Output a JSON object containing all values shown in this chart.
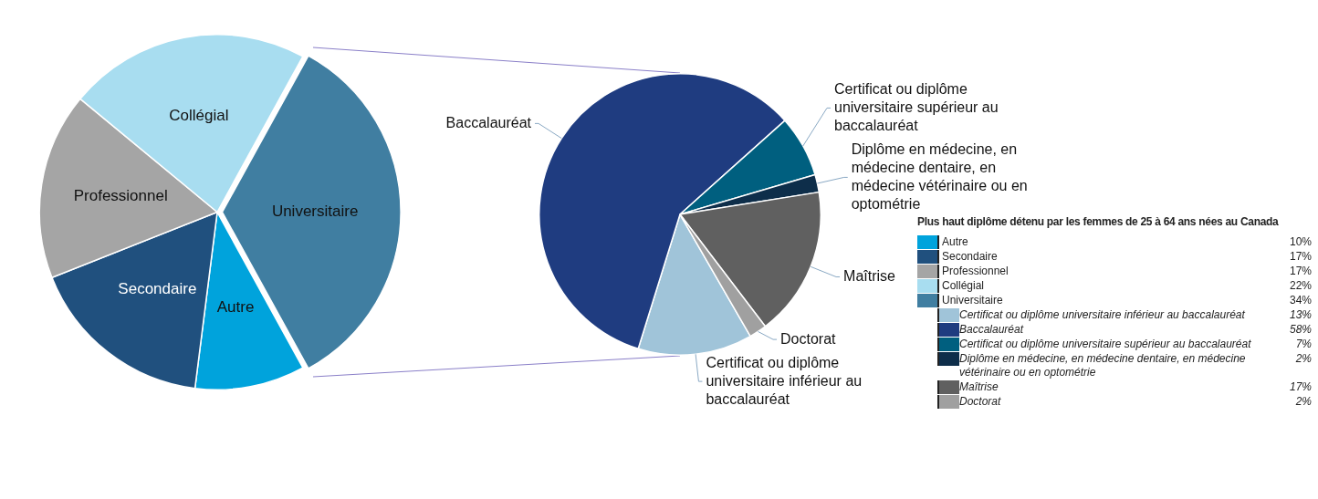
{
  "chart_data": [
    {
      "type": "pie",
      "title": "Plus haut diplôme détenu par les femmes de 25 à 64 ans nées au Canada",
      "categories": [
        "Autre",
        "Secondaire",
        "Professionnel",
        "Collégial",
        "Universitaire"
      ],
      "values": [
        10,
        17,
        17,
        22,
        34
      ],
      "value_labels": [
        "10%",
        "17%",
        "17%",
        "22%",
        "34%"
      ],
      "colors": [
        "#00a3dc",
        "#20507e",
        "#a5a5a5",
        "#a8ddf0",
        "#407ea1"
      ],
      "legend": "right"
    },
    {
      "type": "pie",
      "categories": [
        "Certificat ou diplôme universitaire inférieur au baccalauréat",
        "Baccalauréat",
        "Certificat ou diplôme universitaire supérieur au baccalauréat",
        "Diplôme en médecine, en médecine dentaire, en médecine vétérinaire ou en optométrie",
        "Maîtrise",
        "Doctorat"
      ],
      "values": [
        13,
        58,
        7,
        2,
        17,
        2
      ],
      "value_labels": [
        "13%",
        "58%",
        "7%",
        "2%",
        "17%",
        "2%"
      ],
      "colors": [
        "#a0c4d9",
        "#1f3c80",
        "#005f7f",
        "#0e2e4a",
        "#606060",
        "#a0a0a0"
      ],
      "legend": "right"
    }
  ]
}
